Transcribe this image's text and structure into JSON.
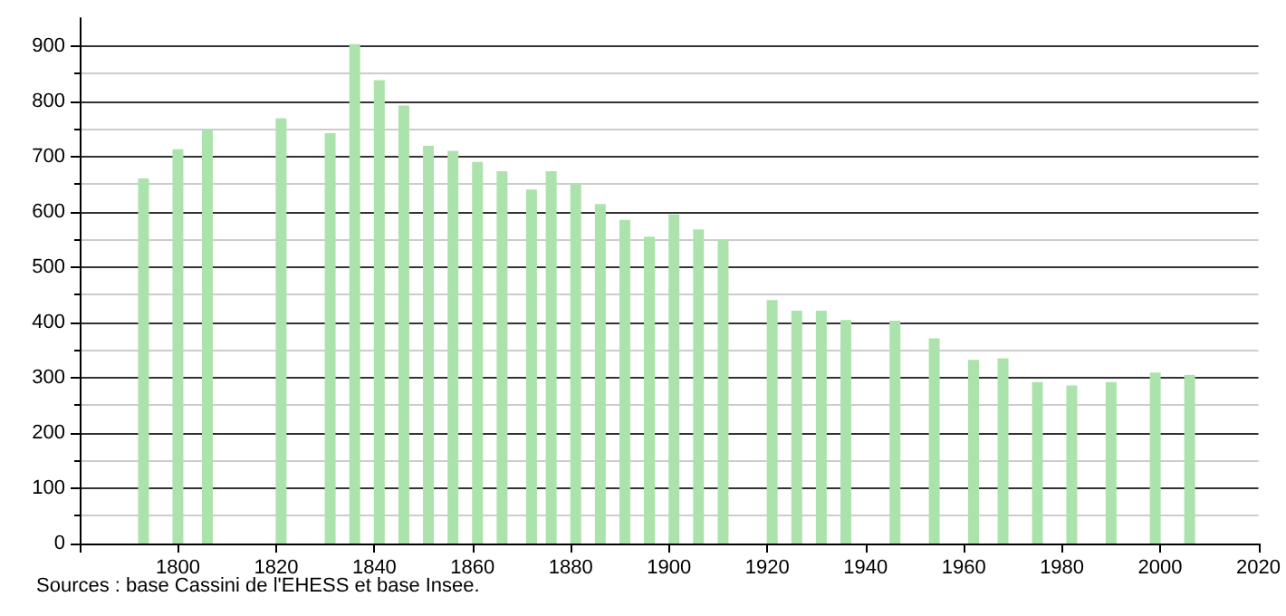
{
  "chart_data": {
    "type": "bar",
    "x": [
      1793,
      1800,
      1806,
      1821,
      1831,
      1836,
      1841,
      1846,
      1851,
      1856,
      1861,
      1866,
      1872,
      1876,
      1881,
      1886,
      1891,
      1896,
      1901,
      1906,
      1911,
      1921,
      1926,
      1931,
      1936,
      1946,
      1954,
      1962,
      1968,
      1975,
      1982,
      1990,
      1999,
      2006
    ],
    "values": [
      660,
      713,
      749,
      769,
      742,
      903,
      838,
      792,
      719,
      710,
      690,
      673,
      640,
      673,
      650,
      614,
      585,
      555,
      595,
      568,
      549,
      440,
      421,
      421,
      404,
      403,
      371,
      332,
      335,
      292,
      286,
      292,
      309,
      305
    ],
    "color": "#ace3ac",
    "xlim": [
      1780,
      2020
    ],
    "xticks": [
      {
        "value": 1780,
        "label": null
      },
      1800,
      1820,
      1840,
      1860,
      1880,
      1900,
      1920,
      1940,
      1960,
      1980,
      2000,
      2020
    ],
    "ylim": [
      0,
      950
    ],
    "yticks": [
      0,
      100,
      200,
      300,
      400,
      500,
      600,
      700,
      800,
      900
    ],
    "grid": "y",
    "annotations": [
      "Sources : base Cassini de l'EHESS et base Insee."
    ]
  }
}
